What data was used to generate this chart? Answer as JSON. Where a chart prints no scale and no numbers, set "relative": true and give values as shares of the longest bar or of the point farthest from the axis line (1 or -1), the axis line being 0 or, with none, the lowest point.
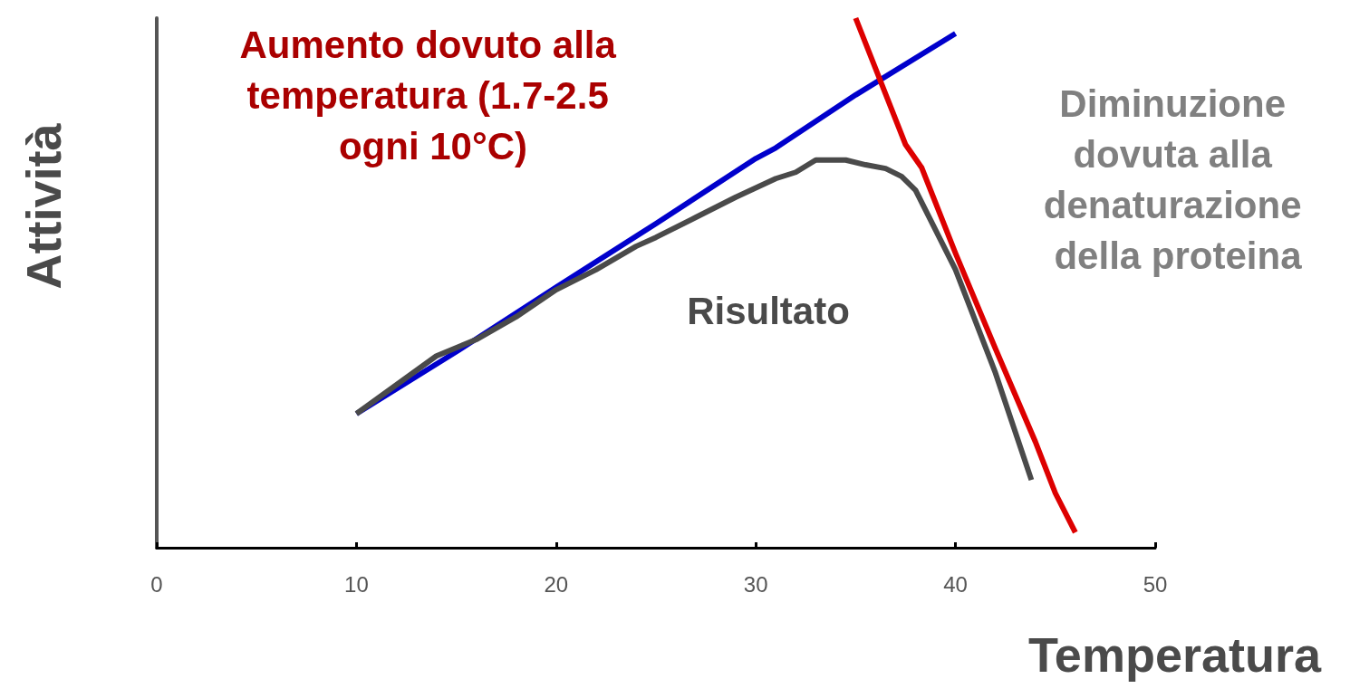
{
  "chart_data": {
    "type": "line",
    "relative": true,
    "xlabel": "Temperatura",
    "ylabel": "Attività",
    "xlim": [
      0,
      50
    ],
    "xticks": [
      0,
      10,
      20,
      30,
      40,
      50
    ],
    "grid": false,
    "marker": "none",
    "line_style": "solid",
    "series": [
      {
        "color": "#0000cc",
        "x": [
          10,
          15,
          20,
          25,
          30,
          31,
          35,
          40
        ],
        "values": [
          0.253,
          0.37,
          0.492,
          0.612,
          0.735,
          0.755,
          0.855,
          0.971
        ]
      },
      {
        "color": "#4a4a4a",
        "x": [
          10,
          14,
          16,
          18,
          20,
          22,
          24,
          25,
          27,
          29,
          31,
          32,
          33,
          34.5,
          35.5,
          36.5,
          37.3,
          38,
          40,
          42,
          43.8
        ],
        "values": [
          0.253,
          0.362,
          0.393,
          0.436,
          0.487,
          0.525,
          0.569,
          0.586,
          0.624,
          0.662,
          0.697,
          0.709,
          0.732,
          0.732,
          0.723,
          0.716,
          0.701,
          0.675,
          0.525,
          0.33,
          0.128
        ]
      },
      {
        "color": "#dd0000",
        "x": [
          35,
          37.5,
          38.3,
          40,
          42,
          44,
          45,
          46
        ],
        "values": [
          1.0,
          0.761,
          0.718,
          0.556,
          0.376,
          0.2,
          0.103,
          0.029
        ]
      }
    ],
    "annotations": [
      "Aumento dovuto alla temperatura (1.7-2.5 ogni 10°C)",
      "Risultato",
      "Diminuzione dovuta alla denaturazione della proteina"
    ]
  }
}
